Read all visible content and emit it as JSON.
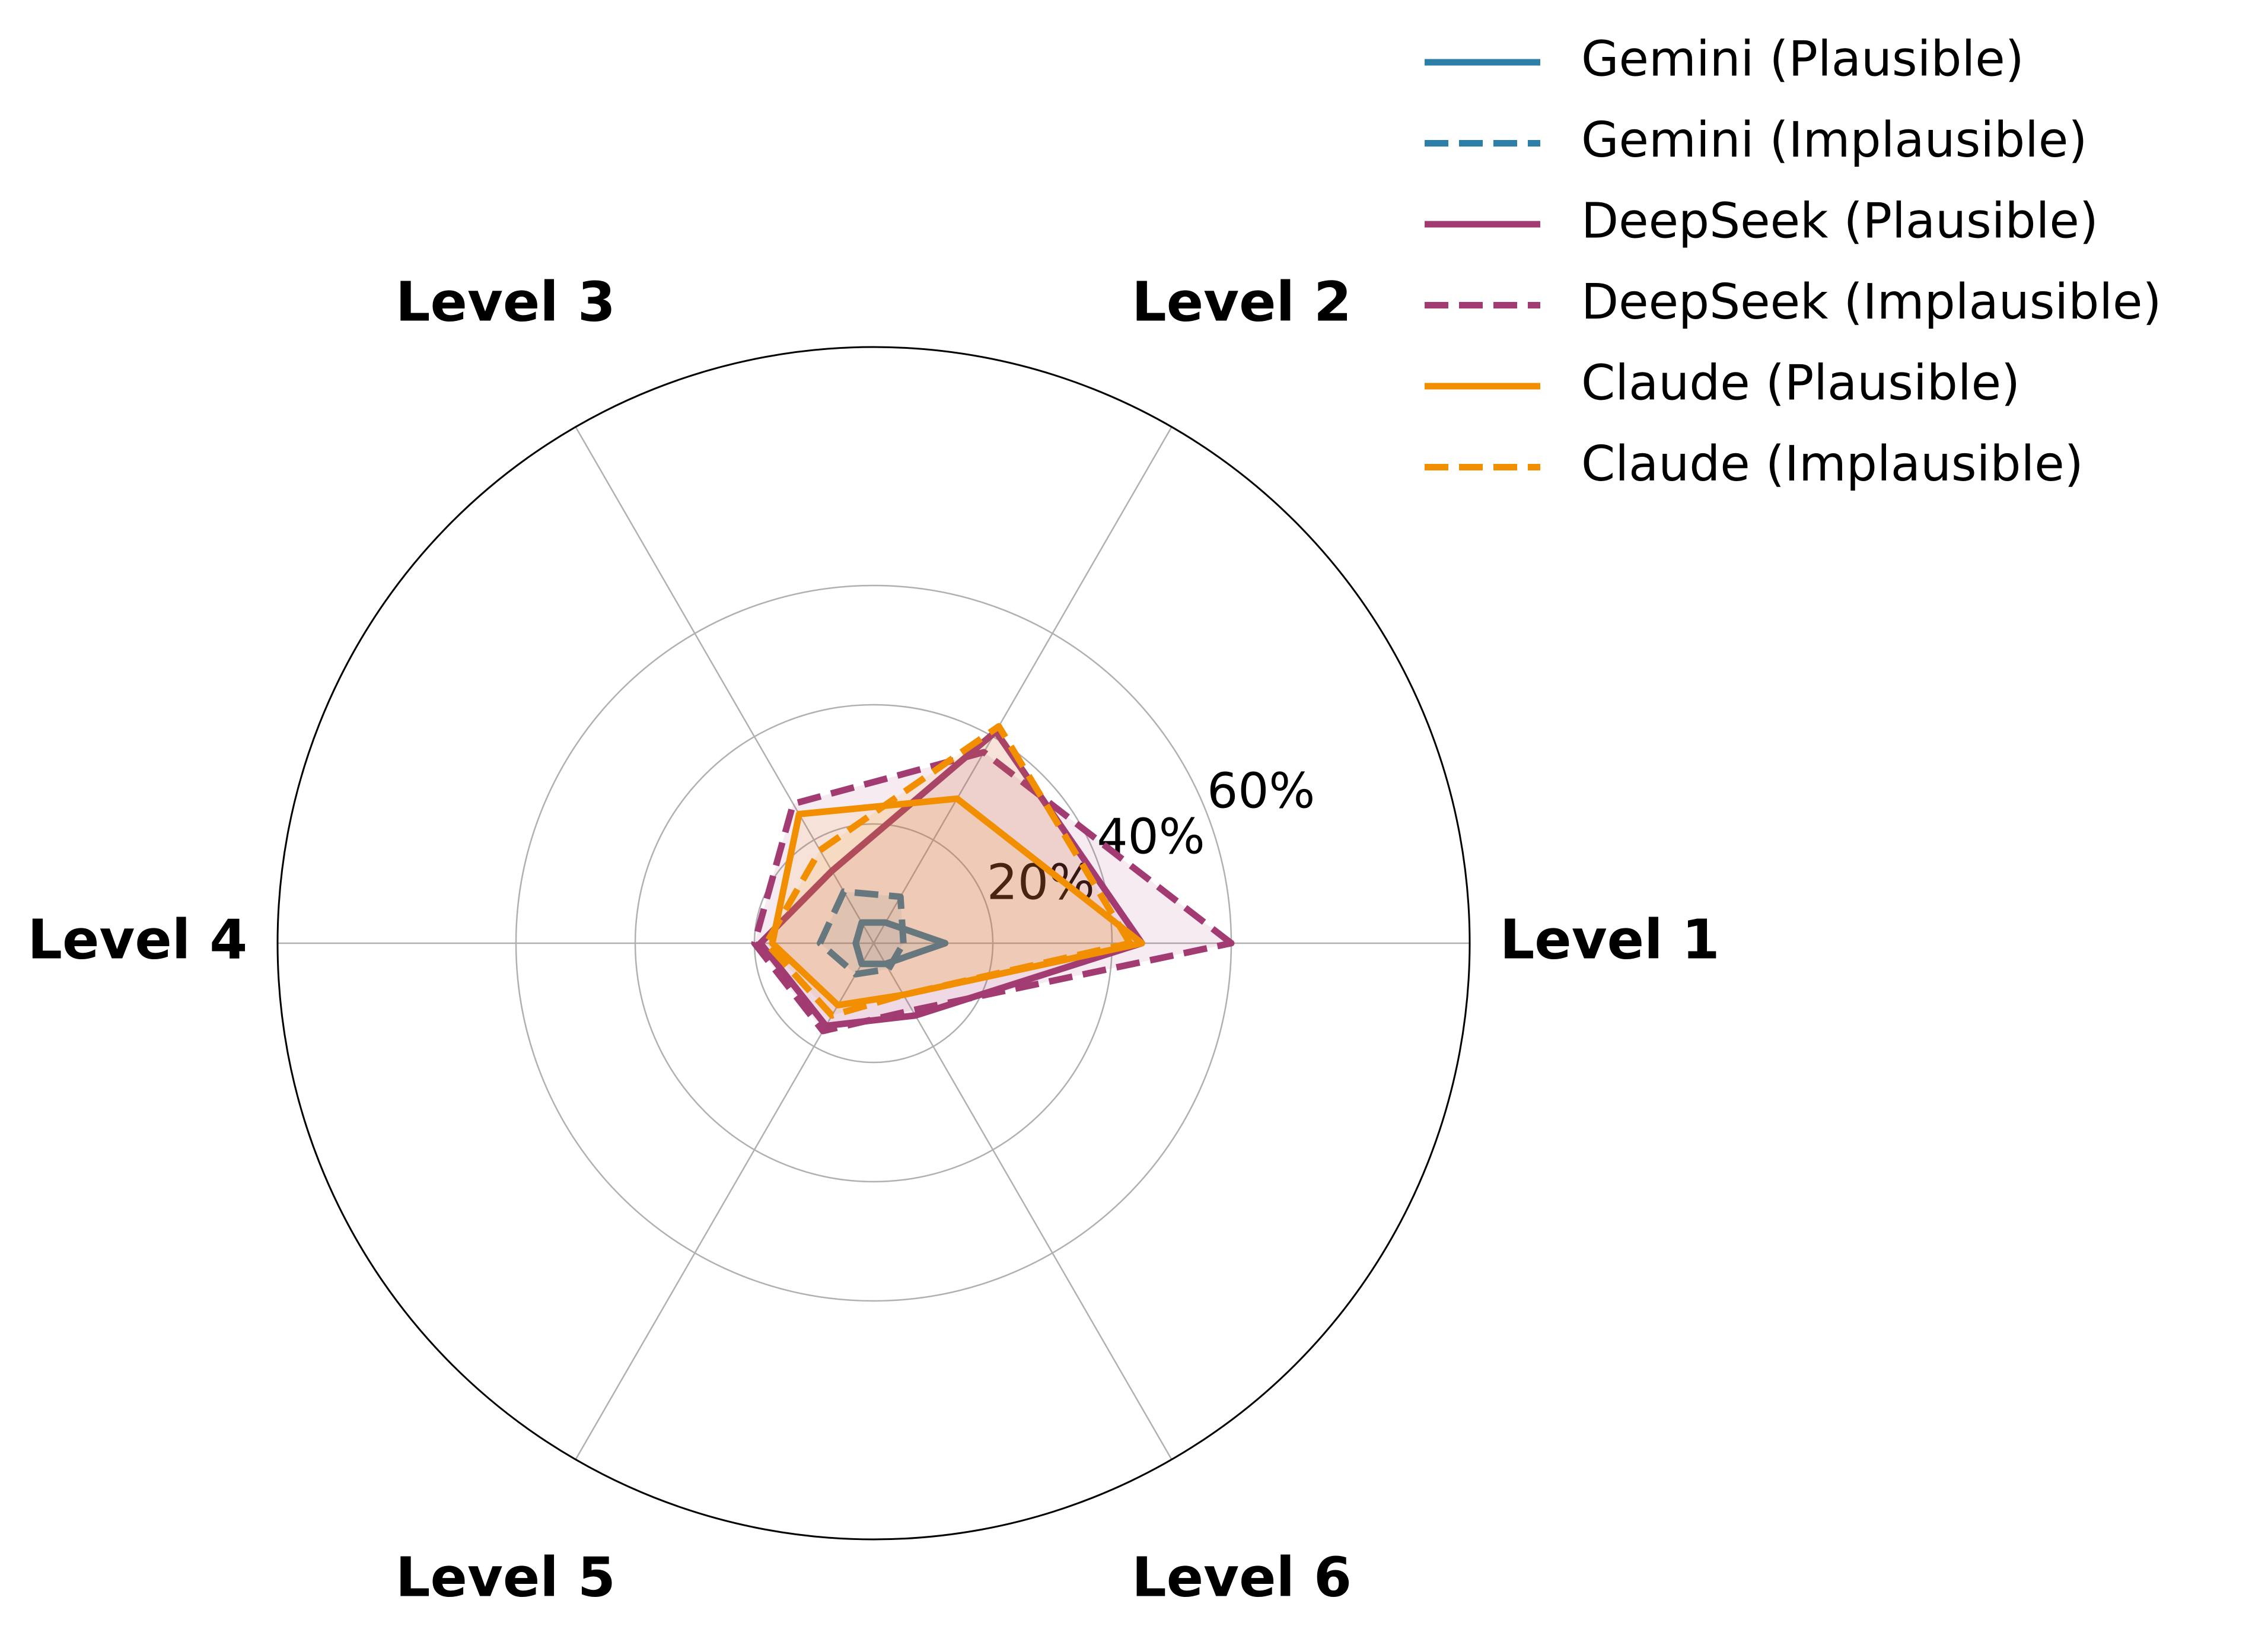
{
  "chart_data": {
    "type": "radar",
    "categories": [
      "Level 1",
      "Level 2",
      "Level 3",
      "Level 4",
      "Level 5",
      "Level 6"
    ],
    "ylim": [
      0,
      100
    ],
    "yticks": [
      {
        "value": 20,
        "label": "20%"
      },
      {
        "value": 40,
        "label": "40%"
      },
      {
        "value": 60,
        "label": "60%"
      }
    ],
    "grid": true,
    "legend": "upper right",
    "series": [
      {
        "name": "Gemini (Plausible)",
        "color": "#2e7fa8",
        "dashed": false,
        "values": [
          12,
          4,
          4,
          3,
          4,
          4
        ]
      },
      {
        "name": "Gemini (Implausible)",
        "color": "#2e7fa8",
        "dashed": true,
        "values": [
          5,
          9,
          10,
          9,
          6,
          5
        ]
      },
      {
        "name": "DeepSeek (Plausible)",
        "color": "#a23b72",
        "dashed": false,
        "values": [
          45,
          41,
          14,
          19,
          16,
          14
        ]
      },
      {
        "name": "DeepSeek (Implausible)",
        "color": "#a23b72",
        "dashed": true,
        "values": [
          60,
          37,
          27,
          20,
          17,
          13
        ]
      },
      {
        "name": "Claude (Plausible)",
        "color": "#f18f01",
        "dashed": false,
        "values": [
          45,
          28,
          25,
          17,
          12,
          10
        ]
      },
      {
        "name": "Claude (Implausible)",
        "color": "#f18f01",
        "dashed": true,
        "values": [
          43,
          42,
          18,
          18,
          14,
          10
        ]
      }
    ]
  }
}
